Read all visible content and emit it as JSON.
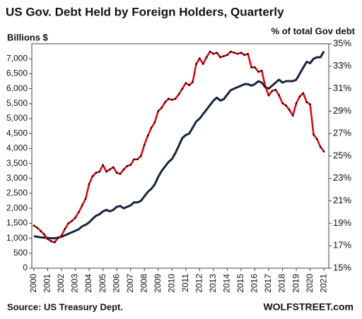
{
  "chart_data": {
    "type": "line",
    "title": "US Gov. Debt Held by Foreign Holders, Quarterly",
    "y_label": "Billions  $",
    "y2_label": "% of total Gov debt",
    "annotations": [
      "Source: US Treasury Dept.",
      "WOLFSTREET.com"
    ],
    "x": [
      2000,
      2000.25,
      2000.5,
      2000.75,
      2001,
      2001.25,
      2001.5,
      2001.75,
      2002,
      2002.25,
      2002.5,
      2002.75,
      2003,
      2003.25,
      2003.5,
      2003.75,
      2004,
      2004.25,
      2004.5,
      2004.75,
      2005,
      2005.25,
      2005.5,
      2005.75,
      2006,
      2006.25,
      2006.5,
      2006.75,
      2007,
      2007.25,
      2007.5,
      2007.75,
      2008,
      2008.25,
      2008.5,
      2008.75,
      2009,
      2009.25,
      2009.5,
      2009.75,
      2010,
      2010.25,
      2010.5,
      2010.75,
      2011,
      2011.25,
      2011.5,
      2011.75,
      2012,
      2012.25,
      2012.5,
      2012.75,
      2013,
      2013.25,
      2013.5,
      2013.75,
      2014,
      2014.25,
      2014.5,
      2014.75,
      2015,
      2015.25,
      2015.5,
      2015.75,
      2016,
      2016.25,
      2016.5,
      2016.75,
      2017,
      2017.25,
      2017.5,
      2017.75,
      2018,
      2018.25,
      2018.5,
      2018.75,
      2019,
      2019.25,
      2019.5,
      2019.75,
      2020,
      2020.25,
      2020.5,
      2020.75,
      2021
    ],
    "series": [
      {
        "name": "Debt held by foreign holders",
        "color": "#17253f",
        "axis": "y",
        "values": [
          1070,
          1050,
          1030,
          1020,
          1010,
          1000,
          1000,
          1020,
          1050,
          1100,
          1150,
          1200,
          1250,
          1300,
          1400,
          1450,
          1530,
          1650,
          1750,
          1800,
          1900,
          1950,
          1900,
          1950,
          2050,
          2080,
          2000,
          2050,
          2100,
          2200,
          2200,
          2250,
          2400,
          2550,
          2650,
          2800,
          3050,
          3250,
          3400,
          3550,
          3650,
          3850,
          4100,
          4350,
          4450,
          4500,
          4700,
          4900,
          5000,
          5150,
          5300,
          5450,
          5600,
          5700,
          5600,
          5650,
          5800,
          5950,
          6000,
          6050,
          6100,
          6150,
          6150,
          6100,
          6150,
          6250,
          6200,
          6050,
          6000,
          6100,
          6200,
          6300,
          6200,
          6250,
          6250,
          6250,
          6300,
          6500,
          6700,
          6900,
          6850,
          7000,
          7050,
          7050,
          7250
        ]
      },
      {
        "name": "% of total Gov debt",
        "color": "#e8000b",
        "axis": "y2",
        "values": [
          18.8,
          18.6,
          18.3,
          18.0,
          17.6,
          17.4,
          17.3,
          17.7,
          17.9,
          18.5,
          19.0,
          19.2,
          19.5,
          20.0,
          20.6,
          21.2,
          22.5,
          23.2,
          23.5,
          23.6,
          24.2,
          23.6,
          23.8,
          24.0,
          23.5,
          23.4,
          23.8,
          24.1,
          24.2,
          24.7,
          24.7,
          25.0,
          26.0,
          26.8,
          27.5,
          28.0,
          29.0,
          29.3,
          29.8,
          30.1,
          30.0,
          30.1,
          30.5,
          31.0,
          31.5,
          31.3,
          31.6,
          33.2,
          33.7,
          33.2,
          33.8,
          34.3,
          34.1,
          34.2,
          33.8,
          33.9,
          34.0,
          34.3,
          34.2,
          34.1,
          34.2,
          34.0,
          34.1,
          32.9,
          32.9,
          32.5,
          32.6,
          31.2,
          30.4,
          30.8,
          30.9,
          30.4,
          29.7,
          29.5,
          29.1,
          28.6,
          29.7,
          30.3,
          30.6,
          29.8,
          29.6,
          26.9,
          26.5,
          25.8,
          25.4
        ]
      }
    ],
    "xlim": [
      1999.85,
      2021.35
    ],
    "xticks": [
      2000,
      2001,
      2002,
      2003,
      2004,
      2005,
      2006,
      2007,
      2008,
      2009,
      2010,
      2011,
      2012,
      2013,
      2014,
      2015,
      2016,
      2017,
      2018,
      2019,
      2020,
      2021
    ],
    "ylim": [
      0,
      7500
    ],
    "yticks": [
      0,
      {
        "value": 500,
        "label": "500"
      },
      {
        "value": 1000,
        "label": "1,000"
      },
      {
        "value": 1500,
        "label": "1,500"
      },
      {
        "value": 2000,
        "label": "2,000"
      },
      {
        "value": 2500,
        "label": "2,500"
      },
      {
        "value": 3000,
        "label": "3,000"
      },
      {
        "value": 3500,
        "label": "3,500"
      },
      {
        "value": 4000,
        "label": "4,000"
      },
      {
        "value": 4500,
        "label": "4,500"
      },
      {
        "value": 5000,
        "label": "5,000"
      },
      {
        "value": 5500,
        "label": "5,500"
      },
      {
        "value": 6000,
        "label": "6,000"
      },
      {
        "value": 6500,
        "label": "6,500"
      },
      {
        "value": 7000,
        "label": "7,000"
      }
    ],
    "y2lim": [
      15,
      35
    ],
    "y2ticks": [
      {
        "value": 15,
        "label": "15%"
      },
      {
        "value": 17,
        "label": "17%"
      },
      {
        "value": 19,
        "label": "19%"
      },
      {
        "value": 21,
        "label": "21%"
      },
      {
        "value": 23,
        "label": "23%"
      },
      {
        "value": 25,
        "label": "25%"
      },
      {
        "value": 27,
        "label": "27%"
      },
      {
        "value": 29,
        "label": "29%"
      },
      {
        "value": 31,
        "label": "31%"
      },
      {
        "value": 33,
        "label": "33%"
      },
      {
        "value": 35,
        "label": "35%"
      }
    ],
    "y2_color": "#e8000b",
    "grid": false
  }
}
